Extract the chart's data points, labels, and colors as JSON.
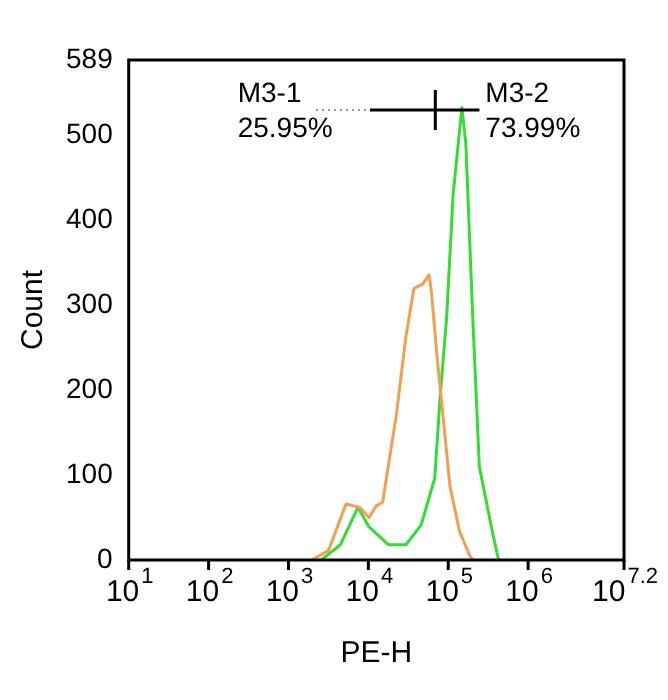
{
  "chart_data": {
    "type": "line",
    "xlabel": "PE-H",
    "ylabel": "Count",
    "log": "x",
    "xlim": [
      10,
      15848932
    ],
    "xticks": [
      {
        "value": 10,
        "label": "10$^{1}$"
      },
      {
        "value": 100,
        "label": "10$^{2}$"
      },
      {
        "value": 1000,
        "label": "10$^{3}$"
      },
      {
        "value": 10000,
        "label": "10$^{4}$"
      },
      {
        "value": 100000,
        "label": "10$^{5}$"
      },
      {
        "value": 1000000,
        "label": "10$^{6}$"
      },
      {
        "value": 15848932,
        "label": "10$^{7.2}$"
      }
    ],
    "ylim": [
      0,
      589
    ],
    "yticks": [
      0,
      100,
      200,
      300,
      400,
      500,
      589
    ],
    "grid": false,
    "legend": false,
    "marker": "none",
    "line_style": "solid",
    "annotations": [
      "M3-1",
      "25.95%",
      "M3-2",
      "73.99%"
    ],
    "series": [
      {
        "color": "#f0a050",
        "x": [
          1950,
          3160,
          5250,
          7760,
          10200,
          12600,
          15100,
          22400,
          29500,
          37200,
          47900,
          57500,
          61700,
          72400,
          89100,
          105000,
          138000,
          186000,
          204000
        ],
        "values": [
          0,
          11,
          66,
          62,
          50,
          64,
          68,
          171,
          263,
          320,
          325,
          336,
          315,
          240,
          155,
          87,
          34,
          5,
          0
        ]
      },
      {
        "color": "#33dd33",
        "x": [
          2570,
          4470,
          7410,
          10200,
          17800,
          29500,
          45700,
          67600,
          79400,
          95500,
          115000,
          148000,
          166000,
          204000,
          245000,
          355000,
          427000
        ],
        "values": [
          0,
          18,
          62,
          39,
          18,
          18,
          41,
          96,
          194,
          286,
          430,
          533,
          491,
          279,
          110,
          34,
          0
        ]
      }
    ]
  }
}
